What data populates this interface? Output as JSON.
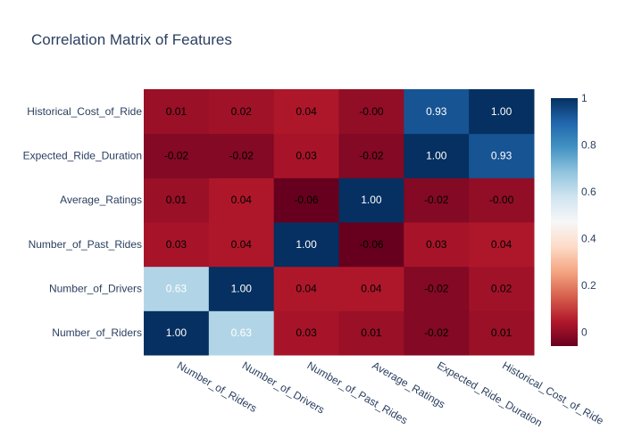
{
  "chart_data": {
    "type": "heatmap",
    "title": "Correlation Matrix of Features",
    "x_labels": [
      "Number_of_Riders",
      "Number_of_Drivers",
      "Number_of_Past_Rides",
      "Average_Ratings",
      "Expected_Ride_Duration",
      "Historical_Cost_of_Ride"
    ],
    "y_labels": [
      "Number_of_Riders",
      "Number_of_Drivers",
      "Number_of_Past_Rides",
      "Average_Ratings",
      "Expected_Ride_Duration",
      "Historical_Cost_of_Ride"
    ],
    "values": [
      [
        1.0,
        0.63,
        0.03,
        0.01,
        -0.02,
        0.01
      ],
      [
        0.63,
        1.0,
        0.04,
        0.04,
        -0.02,
        0.02
      ],
      [
        0.03,
        0.04,
        1.0,
        -0.06,
        0.03,
        0.04
      ],
      [
        0.01,
        0.04,
        -0.06,
        1.0,
        -0.02,
        -0.0
      ],
      [
        -0.02,
        -0.02,
        0.03,
        -0.02,
        1.0,
        0.93
      ],
      [
        0.01,
        0.02,
        0.04,
        -0.0,
        0.93,
        1.0
      ]
    ],
    "cell_text": [
      [
        "1.00",
        "0.63",
        "0.03",
        "0.01",
        "-0.02",
        "0.01"
      ],
      [
        "0.63",
        "1.00",
        "0.04",
        "0.04",
        "-0.02",
        "0.02"
      ],
      [
        "0.03",
        "0.04",
        "1.00",
        "-0.06",
        "0.03",
        "0.04"
      ],
      [
        "0.01",
        "0.04",
        "-0.06",
        "1.00",
        "-0.02",
        "-0.00"
      ],
      [
        "-0.02",
        "-0.02",
        "0.03",
        "-0.02",
        "1.00",
        "0.93"
      ],
      [
        "0.01",
        "0.02",
        "0.04",
        "-0.00",
        "0.93",
        "1.00"
      ]
    ],
    "zlim": [
      -0.06,
      1.0
    ],
    "colorscale": "RdBu",
    "colorbar": {
      "ticks": [
        0,
        0.2,
        0.4,
        0.6,
        0.8,
        1
      ],
      "tick_labels": [
        "0",
        "0.2",
        "0.4",
        "0.6",
        "0.8",
        "1"
      ],
      "placement": "right"
    }
  }
}
